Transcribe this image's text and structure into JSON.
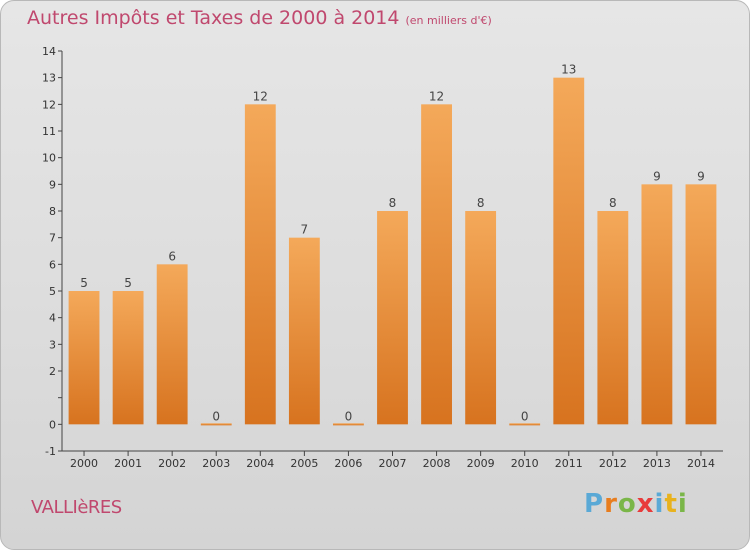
{
  "header": {
    "title": "Autres Impôts et Taxes de 2000 à 2014",
    "unit": "(en milliers d'€)"
  },
  "footer": {
    "commune": "VALLIèRES",
    "logo_letters": [
      "P",
      "r",
      "o",
      "x",
      "i",
      "t",
      "i"
    ],
    "logo_colors": [
      "#5aa9d6",
      "#e87d1e",
      "#7ab648",
      "#e83b3b",
      "#5aa9d6",
      "#e8b21e",
      "#7ab648"
    ]
  },
  "colors": {
    "bar_top": "#f4a95a",
    "bar_bottom": "#d7731f",
    "axis": "#444444",
    "grid": "#cfcfcf"
  },
  "chart_data": {
    "type": "bar",
    "title": "Autres Impôts et Taxes de 2000 à 2014",
    "categories": [
      "2000",
      "2001",
      "2002",
      "2003",
      "2004",
      "2005",
      "2006",
      "2007",
      "2008",
      "2009",
      "2010",
      "2011",
      "2012",
      "2013",
      "2014"
    ],
    "values": [
      5,
      5,
      6,
      0,
      12,
      7,
      0,
      8,
      12,
      8,
      0,
      13,
      8,
      9,
      9
    ],
    "ylim": [
      -1,
      14
    ],
    "yticks": [
      -1,
      0,
      1,
      2,
      3,
      4,
      5,
      6,
      7,
      8,
      9,
      10,
      11,
      12,
      13,
      14
    ],
    "ytick_labels": [
      "-1",
      "0",
      "",
      "2",
      "3",
      "4",
      "5",
      "6",
      "7",
      "8",
      "9",
      "10",
      "11",
      "12",
      "13",
      "14"
    ],
    "grid": false,
    "legend": "none"
  }
}
